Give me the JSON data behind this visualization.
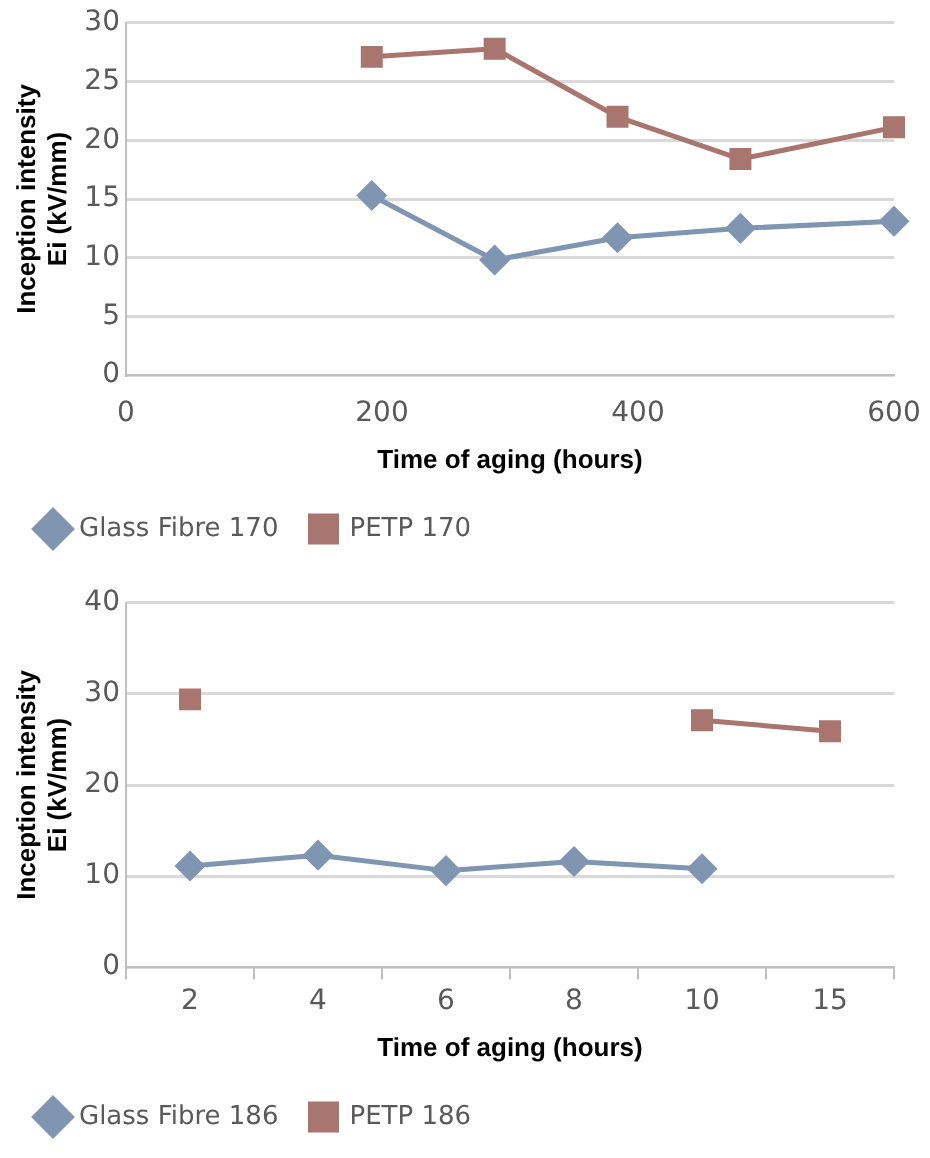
{
  "chart_data": [
    {
      "type": "line",
      "xlabel": "Time of aging (hours)",
      "ylabel": "Inception intensity Ei (kV/mm)",
      "x": [
        192,
        288,
        384,
        480,
        600
      ],
      "xlim": [
        0,
        600
      ],
      "xticks": [
        0,
        200,
        400,
        600
      ],
      "ylim": [
        0,
        30
      ],
      "yticks": [
        0,
        5,
        10,
        15,
        20,
        25,
        30
      ],
      "grid": "y",
      "legend": "bottom",
      "series": [
        {
          "name": "Glass Fibre 170",
          "color": "#7f95b1",
          "marker": "diamond",
          "values": [
            15.3,
            9.8,
            11.7,
            12.5,
            13.1
          ]
        },
        {
          "name": "PETP 170",
          "color": "#a9756f",
          "marker": "square",
          "values": [
            27.1,
            27.8,
            22.0,
            18.4,
            21.1
          ]
        }
      ]
    },
    {
      "type": "line",
      "xlabel": "Time of aging (hours)",
      "ylabel": "Inception intensity Ei (kV/mm)",
      "categories": [
        "2",
        "4",
        "6",
        "8",
        "10",
        "15"
      ],
      "ylim": [
        0,
        40
      ],
      "yticks": [
        0,
        10,
        20,
        30,
        40
      ],
      "grid": "y",
      "legend": "bottom",
      "series": [
        {
          "name": "Glass Fibre 186",
          "color": "#7f95b1",
          "marker": "diamond",
          "values": [
            11.1,
            12.3,
            10.6,
            11.6,
            10.8,
            null
          ]
        },
        {
          "name": "PETP 186",
          "color": "#a9756f",
          "marker": "square",
          "values": [
            29.4,
            null,
            null,
            null,
            27.1,
            25.9
          ]
        }
      ]
    }
  ]
}
